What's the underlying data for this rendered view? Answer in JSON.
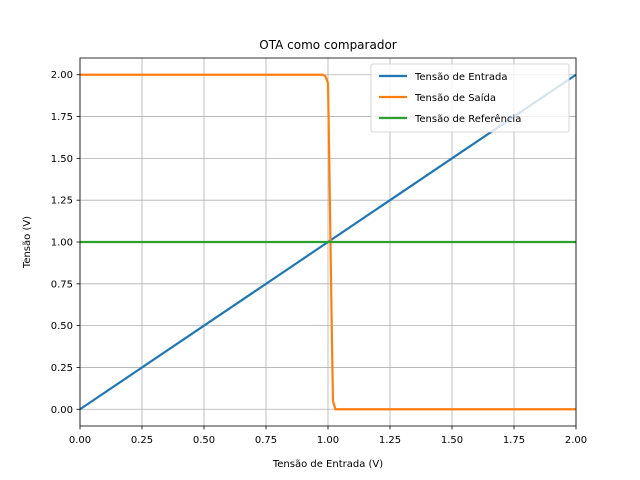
{
  "chart_data": {
    "type": "line",
    "title": "OTA como comparador",
    "xlabel": "Tensão de Entrada (V)",
    "ylabel": "Tensão (V)",
    "xlim": [
      0,
      2
    ],
    "ylim": [
      -0.1,
      2.1
    ],
    "xticks": [
      0,
      0.25,
      0.5,
      0.75,
      1.0,
      1.25,
      1.5,
      1.75,
      2.0
    ],
    "yticks": [
      0,
      0.25,
      0.5,
      0.75,
      1.0,
      1.25,
      1.5,
      1.75,
      2.0
    ],
    "xtick_labels": [
      "0.00",
      "0.25",
      "0.50",
      "0.75",
      "1.00",
      "1.25",
      "1.50",
      "1.75",
      "2.00"
    ],
    "ytick_labels": [
      "0.00",
      "0.25",
      "0.50",
      "0.75",
      "1.00",
      "1.25",
      "1.50",
      "1.75",
      "2.00"
    ],
    "grid": true,
    "legend_position": "top-right",
    "series": [
      {
        "name": "Tensão de Entrada",
        "color": "#1f77b4",
        "x": [
          0,
          2
        ],
        "y": [
          0,
          2
        ]
      },
      {
        "name": "Tensão de Saída",
        "color": "#ff7f0e",
        "x": [
          0,
          0.98,
          0.99,
          1.0,
          1.005,
          1.01,
          1.015,
          1.02,
          1.03,
          1.05,
          2.0
        ],
        "y": [
          2.0,
          2.0,
          1.99,
          1.95,
          1.5,
          1.0,
          0.5,
          0.05,
          0.0,
          0.0,
          0.0
        ]
      },
      {
        "name": "Tensão de Referência",
        "color": "#2ca02c",
        "x": [
          0,
          2
        ],
        "y": [
          1,
          1
        ]
      }
    ]
  }
}
